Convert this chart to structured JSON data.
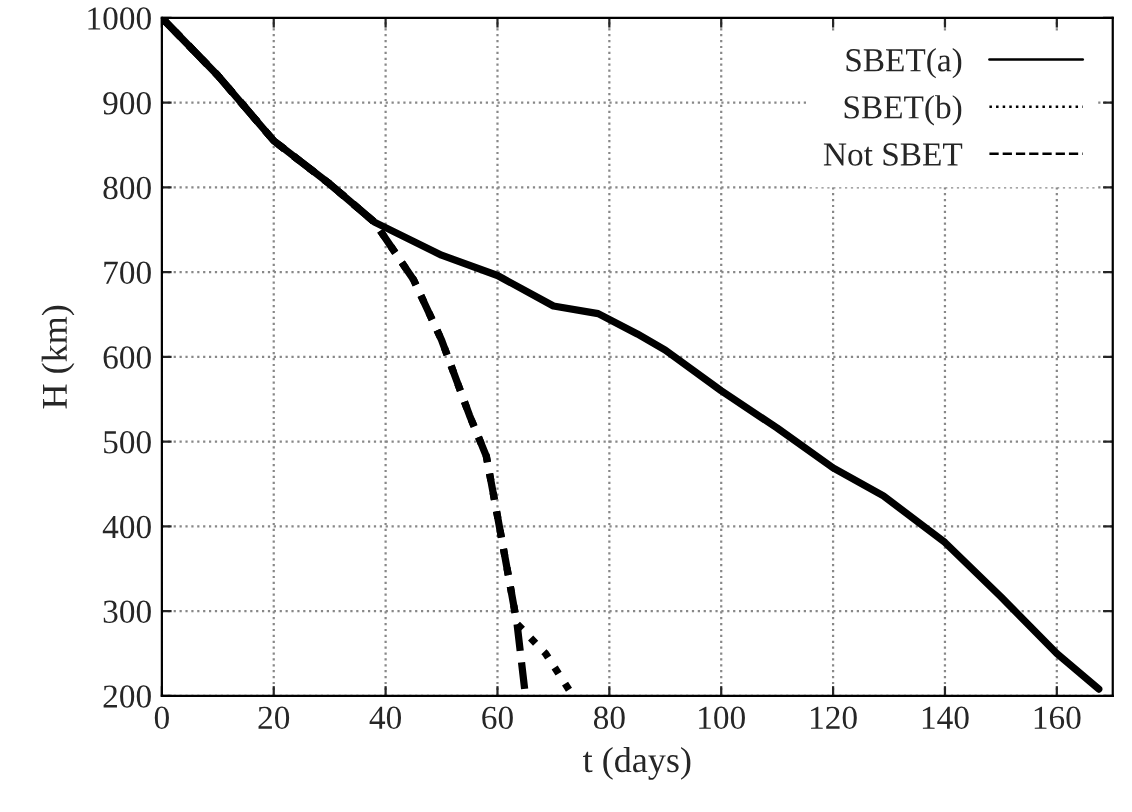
{
  "chart_data": {
    "type": "line",
    "xlabel": "t (days)",
    "ylabel": "H (km)",
    "xlim": [
      0,
      170
    ],
    "xticks": [
      0,
      20,
      40,
      60,
      80,
      100,
      120,
      140,
      160
    ],
    "ylim": [
      200,
      1000
    ],
    "yticks": [
      200,
      300,
      400,
      500,
      600,
      700,
      800,
      900,
      1000
    ],
    "grid": true,
    "legend": "top right",
    "series": [
      {
        "name": "SBET(a)",
        "color": "#000000",
        "line_style": "solid",
        "x": [
          0,
          10,
          20,
          30,
          38,
          50,
          60,
          70,
          78,
          85,
          90,
          100,
          110,
          120,
          129,
          140,
          150,
          160,
          167.5
        ],
        "values": [
          1000,
          932,
          855,
          804,
          759,
          720,
          696,
          660,
          651,
          627,
          608,
          560,
          516,
          469,
          436,
          381,
          317,
          250,
          208
        ]
      },
      {
        "name": "SBET(b)",
        "color": "#000000",
        "line_style": "dotted",
        "x": [
          0,
          10,
          20,
          30,
          38,
          45,
          50,
          55,
          58,
          60,
          62,
          63.5,
          68.6,
          73.5
        ],
        "values": [
          1000,
          932,
          855,
          804,
          759,
          691,
          620,
          531,
          483,
          412,
          340,
          285,
          250,
          200
        ]
      },
      {
        "name": "Not SBET",
        "color": "#000000",
        "line_style": "dashed",
        "x": [
          0,
          10,
          20,
          30,
          38,
          45,
          50,
          55,
          58,
          60,
          62,
          63.5,
          65
        ],
        "values": [
          1000,
          932,
          855,
          804,
          759,
          691,
          620,
          531,
          483,
          412,
          340,
          285,
          200
        ]
      }
    ]
  }
}
